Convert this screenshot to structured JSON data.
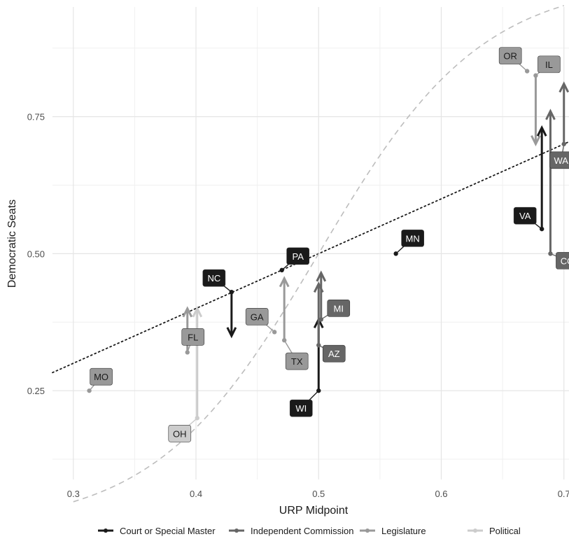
{
  "chart_data": {
    "type": "scatter",
    "xlabel": "URP Midpoint",
    "ylabel": "Democratic Seats",
    "xlim": [
      0.283,
      0.707
    ],
    "ylim": [
      0.088,
      0.95
    ],
    "x_ticks": [
      0.3,
      0.4,
      0.5,
      0.6,
      0.7
    ],
    "y_ticks": [
      0.25,
      0.5,
      0.75
    ],
    "x_tick_labels": [
      "0.3",
      "0.4",
      "0.5",
      "0.6",
      "0.7"
    ],
    "y_tick_labels": [
      "0.25",
      "0.50",
      "0.75"
    ],
    "grid": true,
    "legend_position": "bottom",
    "categories": [
      {
        "name": "Court or Special Master",
        "color": "#1a1a1a"
      },
      {
        "name": "Independent Commission",
        "color": "#666666"
      },
      {
        "name": "Legislature",
        "color": "#999999"
      },
      {
        "name": "Political",
        "color": "#cccccc"
      }
    ],
    "states": [
      {
        "label": "MO",
        "x": 0.313,
        "y": 0.25,
        "y_end": null,
        "category": 2
      },
      {
        "label": "OH",
        "x": 0.401,
        "y": 0.2,
        "y_end": 0.4,
        "category": 3
      },
      {
        "label": "FL",
        "x": 0.393,
        "y": 0.32,
        "y_end": 0.4,
        "category": 2
      },
      {
        "label": "NC",
        "x": 0.429,
        "y": 0.43,
        "y_end": 0.35,
        "category": 0
      },
      {
        "label": "GA",
        "x": 0.464,
        "y": 0.357,
        "y_end": null,
        "category": 2
      },
      {
        "label": "PA",
        "x": 0.47,
        "y": 0.47,
        "y_end": null,
        "category": 0
      },
      {
        "label": "TX",
        "x": 0.472,
        "y": 0.342,
        "y_end": 0.455,
        "category": 2
      },
      {
        "label": "WI",
        "x": 0.5,
        "y": 0.25,
        "y_end": 0.38,
        "category": 0
      },
      {
        "label": "AZ",
        "x": 0.5,
        "y": 0.333,
        "y_end": 0.445,
        "category": 1
      },
      {
        "label": "MI",
        "x": 0.502,
        "y": 0.38,
        "y_end": 0.465,
        "category": 1
      },
      {
        "label": "MN",
        "x": 0.563,
        "y": 0.5,
        "y_end": null,
        "category": 0
      },
      {
        "label": "OR",
        "x": 0.67,
        "y": 0.833,
        "y_end": null,
        "category": 2
      },
      {
        "label": "IL",
        "x": 0.677,
        "y": 0.825,
        "y_end": 0.7,
        "category": 2
      },
      {
        "label": "VA",
        "x": 0.682,
        "y": 0.545,
        "y_end": 0.73,
        "category": 0
      },
      {
        "label": "CO",
        "x": 0.689,
        "y": 0.5,
        "y_end": 0.76,
        "category": 1
      },
      {
        "label": "WA",
        "x": 0.7,
        "y": 0.7,
        "y_end": 0.81,
        "category": 1
      }
    ],
    "reference_lines": [
      {
        "style": "dotted",
        "color": "#1a1a1a"
      },
      {
        "style": "dashed",
        "color": "#bdbdbd"
      }
    ]
  }
}
